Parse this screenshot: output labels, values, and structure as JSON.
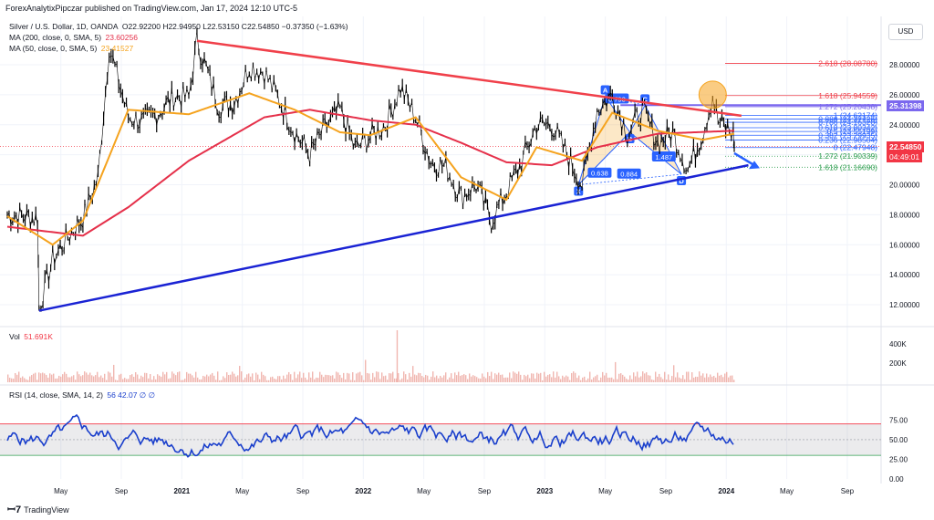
{
  "header": {
    "text": "ForexAnalytixPipczar published on TradingView.com, Jan 17, 2024 12:10 UTC-5"
  },
  "legend": {
    "symbol": "Silver / U.S. Dollar, 1D, OANDA",
    "ohlc": "O22.92200  H22.94950  L22.53150  C22.54850  −0.37350 (−1.63%)",
    "ma200_label": "MA (200, close, 0, SMA, 5)",
    "ma200_value": "23.60256",
    "ma50_label": "MA (50, close, 0, SMA, 5)",
    "ma50_value": "23.41527",
    "vol_label": "Vol",
    "vol_value": "51.691K",
    "rsi_label": "RSI (14, close, SMA, 14, 2)",
    "rsi_values": "56  42.07  ∅  ∅"
  },
  "currency": "USD",
  "price_tags": {
    "current_price": "22.54850",
    "countdown": "04:49:01",
    "fib_tag": "25.31398"
  },
  "colors": {
    "candle": "#000000",
    "ma200": "#e5304a",
    "ma50": "#f5a31e",
    "trendline_red": "#f0404a",
    "trendline_blue": "#1a23d4",
    "harmonic": "#2962ff",
    "rsi": "#1a3fcc",
    "volume": "#f0b6b0",
    "current_price": "#f23645"
  },
  "chart_data": {
    "type": "line",
    "instrument": "Silver / U.S. Dollar",
    "timeframe": "1D",
    "y_axis": {
      "ticks": [
        "28.00000",
        "26.00000",
        "24.00000",
        "22.00000",
        "20.00000",
        "18.00000",
        "16.00000",
        "14.00000",
        "12.00000"
      ],
      "range": [
        10.8,
        29.6
      ]
    },
    "x_axis": {
      "ticks": [
        "May",
        "Sep",
        "2021",
        "May",
        "Sep",
        "2022",
        "May",
        "Sep",
        "2023",
        "May",
        "Sep",
        "2024",
        "May",
        "Sep"
      ]
    },
    "price_path": [
      [
        "2020-01",
        18.0
      ],
      [
        "2020-03",
        17.8
      ],
      [
        "2020-03-18",
        11.8
      ],
      [
        "2020-04",
        15.0
      ],
      [
        "2020-05",
        16.5
      ],
      [
        "2020-06",
        17.8
      ],
      [
        "2020-07",
        20.5
      ],
      [
        "2020-08-07",
        29.2
      ],
      [
        "2020-09",
        24.5
      ],
      [
        "2020-10",
        24.2
      ],
      [
        "2020-11",
        24.8
      ],
      [
        "2020-12",
        25.9
      ],
      [
        "2021-01",
        25.8
      ],
      [
        "2021-02-01",
        29.6
      ],
      [
        "2021-03",
        25.2
      ],
      [
        "2021-04",
        25.5
      ],
      [
        "2021-05",
        27.9
      ],
      [
        "2021-06",
        27.5
      ],
      [
        "2021-07",
        25.6
      ],
      [
        "2021-08",
        23.5
      ],
      [
        "2021-09",
        22.0
      ],
      [
        "2021-10",
        23.8
      ],
      [
        "2021-11",
        25.0
      ],
      [
        "2021-12",
        22.4
      ],
      [
        "2022-01",
        23.2
      ],
      [
        "2022-02",
        24.0
      ],
      [
        "2022-03",
        26.5
      ],
      [
        "2022-04",
        24.5
      ],
      [
        "2022-05",
        21.5
      ],
      [
        "2022-06",
        21.2
      ],
      [
        "2022-07",
        19.2
      ],
      [
        "2022-08",
        20.0
      ],
      [
        "2022-09",
        17.6
      ],
      [
        "2022-10",
        19.5
      ],
      [
        "2022-11",
        21.5
      ],
      [
        "2022-12",
        24.0
      ],
      [
        "2023-01",
        24.0
      ],
      [
        "2023-02",
        22.0
      ],
      [
        "2023-03",
        20.0
      ],
      [
        "2023-04",
        25.0
      ],
      [
        "2023-05",
        26.0
      ],
      [
        "2023-06",
        23.4
      ],
      [
        "2023-07",
        25.0
      ],
      [
        "2023-08",
        22.8
      ],
      [
        "2023-09",
        23.5
      ],
      [
        "2023-10",
        21.0
      ],
      [
        "2023-11",
        23.5
      ],
      [
        "2023-12-04",
        25.9
      ],
      [
        "2023-12",
        24.2
      ],
      [
        "2024-01",
        23.4
      ],
      [
        "2024-01-17",
        22.55
      ]
    ],
    "ma200_path": [
      [
        "2020-01",
        17.2
      ],
      [
        "2020-06",
        16.6
      ],
      [
        "2020-09",
        18.5
      ],
      [
        "2021-01",
        21.6
      ],
      [
        "2021-06",
        24.5
      ],
      [
        "2021-09",
        25.0
      ],
      [
        "2022-01",
        24.3
      ],
      [
        "2022-04",
        24.0
      ],
      [
        "2022-07",
        22.8
      ],
      [
        "2022-10",
        21.5
      ],
      [
        "2023-01",
        21.3
      ],
      [
        "2023-04",
        22.5
      ],
      [
        "2023-08",
        23.4
      ],
      [
        "2024-01-17",
        23.6
      ]
    ],
    "ma50_path": [
      [
        "2020-01",
        17.9
      ],
      [
        "2020-04",
        16.0
      ],
      [
        "2020-06",
        17.6
      ],
      [
        "2020-09",
        25.0
      ],
      [
        "2021-01",
        24.7
      ],
      [
        "2021-05",
        26.1
      ],
      [
        "2021-08",
        25.0
      ],
      [
        "2021-11",
        23.5
      ],
      [
        "2022-01",
        23.3
      ],
      [
        "2022-04",
        24.5
      ],
      [
        "2022-07",
        20.5
      ],
      [
        "2022-10",
        19.0
      ],
      [
        "2022-12",
        22.5
      ],
      [
        "2023-03",
        21.6
      ],
      [
        "2023-05",
        24.8
      ],
      [
        "2023-08",
        23.6
      ],
      [
        "2023-11",
        23.0
      ],
      [
        "2024-01-17",
        23.4
      ]
    ],
    "trendlines": [
      {
        "name": "resistance",
        "from": [
          "2021-02-01",
          29.6
        ],
        "to": [
          "2024-02-01",
          24.6
        ]
      },
      {
        "name": "support",
        "from": [
          "2020-03-18",
          11.6
        ],
        "to": [
          "2024-02-15",
          21.3
        ]
      }
    ],
    "harmonic_pattern": {
      "points": [
        {
          "label": "X",
          "date": "2023-03-08",
          "price": 20.0
        },
        {
          "label": "A",
          "date": "2023-05-01",
          "price": 25.9
        },
        {
          "label": "B",
          "date": "2023-06-20",
          "price": 23.5
        },
        {
          "label": "C",
          "date": "2023-07-20",
          "price": 25.3
        },
        {
          "label": "D",
          "date": "2023-10-02",
          "price": 20.7
        }
      ],
      "ratios": [
        "0.793",
        "0.638",
        "1.487",
        "0.884"
      ]
    },
    "fib_levels": [
      {
        "label": "2.618 (28.08780)",
        "price": 28.0878
      },
      {
        "label": "1.618 (25.94559)",
        "price": 25.94559
      },
      {
        "label": "1.272 (25.20438)",
        "price": 25.20438
      },
      {
        "label": "1 (24.62174)",
        "price": 24.62174
      },
      {
        "label": "0.886 (24.37726)",
        "price": 24.37726
      },
      {
        "label": "0.786 (24.16320)",
        "price": 24.1632
      },
      {
        "label": "0.618 (23.80342)",
        "price": 23.80342
      },
      {
        "label": "0.5 (23.55199)",
        "price": 23.55199
      },
      {
        "label": "0.382 (23.29935)",
        "price": 23.29935
      },
      {
        "label": "0.236 (22.98504)",
        "price": 22.98504
      },
      {
        "label": "0 (22.47948)",
        "price": 22.47948
      },
      {
        "label": "1.272 (21.90339)",
        "price": 21.90339
      },
      {
        "label": "1.618 (21.16690)",
        "price": 21.1669
      }
    ],
    "volume_axis": {
      "ticks": [
        "400K",
        "200K"
      ]
    },
    "rsi": {
      "levels": {
        "upper": 70,
        "lower": 30
      },
      "axis_ticks": [
        "75.00",
        "50.00",
        "25.00",
        "0.00"
      ]
    }
  }
}
